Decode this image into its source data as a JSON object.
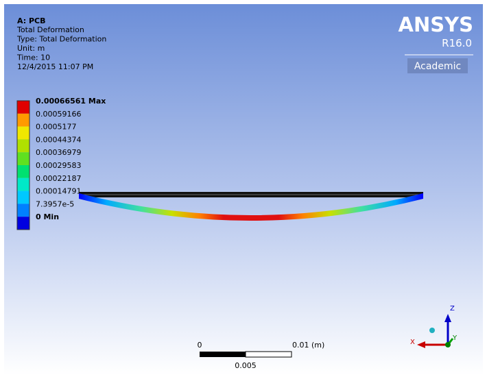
{
  "header": {
    "title": "A: PCB",
    "lines": [
      "Total Deformation",
      "Type: Total Deformation",
      "Unit: m",
      "Time: 10",
      "12/4/2015 11:07 PM"
    ]
  },
  "logo": {
    "brand": "ANSYS",
    "version": "R16.0",
    "edition": "Academic"
  },
  "legend": {
    "labels": [
      "0.00066561 Max",
      "0.00059166",
      "0.0005177",
      "0.00044374",
      "0.00036979",
      "0.00029583",
      "0.00022187",
      "0.00014791",
      "7.3957e-5",
      "0 Min"
    ]
  },
  "scale_bar": {
    "start": "0",
    "end": "0.01 (m)",
    "middle": "0.005"
  },
  "triad": {
    "z": "Z",
    "x": "X",
    "y": "Y"
  }
}
